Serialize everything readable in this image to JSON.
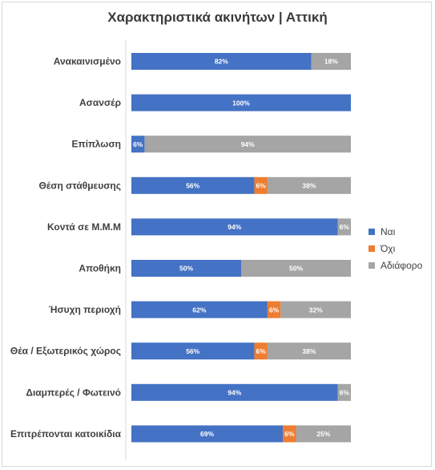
{
  "chart_data": {
    "type": "bar",
    "orientation": "horizontal",
    "stacked": true,
    "title": "Χαρακτηριστικά ακινήτων | Αττική",
    "categories": [
      "Ανακαινισμένο",
      "Ασανσέρ",
      "Επίπλωση",
      "Θέση στάθμευσης",
      "Κοντά σε Μ.Μ.Μ",
      "Αποθήκη",
      "Ήσυχη περιοχή",
      "Θέα / Εξωτερικός χώρος",
      "Διαμπερές / Φωτεινό",
      "Επιτρέπονται κατοικίδια"
    ],
    "series": [
      {
        "name": "Ναι",
        "color": "#4472c4",
        "values": [
          82,
          100,
          6,
          56,
          94,
          50,
          62,
          56,
          94,
          69
        ],
        "labels": [
          "82%",
          "100%",
          "6%",
          "56%",
          "94%",
          "50%",
          "62%",
          "56%",
          "94%",
          "69%"
        ]
      },
      {
        "name": "Όχι",
        "color": "#ed7d31",
        "values": [
          0,
          0,
          0,
          6,
          0,
          0,
          6,
          6,
          0,
          6
        ],
        "labels": [
          "",
          "",
          "",
          "6%",
          "",
          "",
          "6%",
          "6%",
          "",
          "6%"
        ]
      },
      {
        "name": "Αδιάφορο",
        "color": "#a5a5a5",
        "values": [
          18,
          0,
          94,
          38,
          6,
          50,
          32,
          38,
          6,
          25
        ],
        "labels": [
          "18%",
          "",
          "94%",
          "38%",
          "6%",
          "50%",
          "32%",
          "38%",
          "6%",
          "25%"
        ]
      }
    ],
    "xlim": [
      0,
      100
    ],
    "grid": false,
    "legend": "right"
  }
}
